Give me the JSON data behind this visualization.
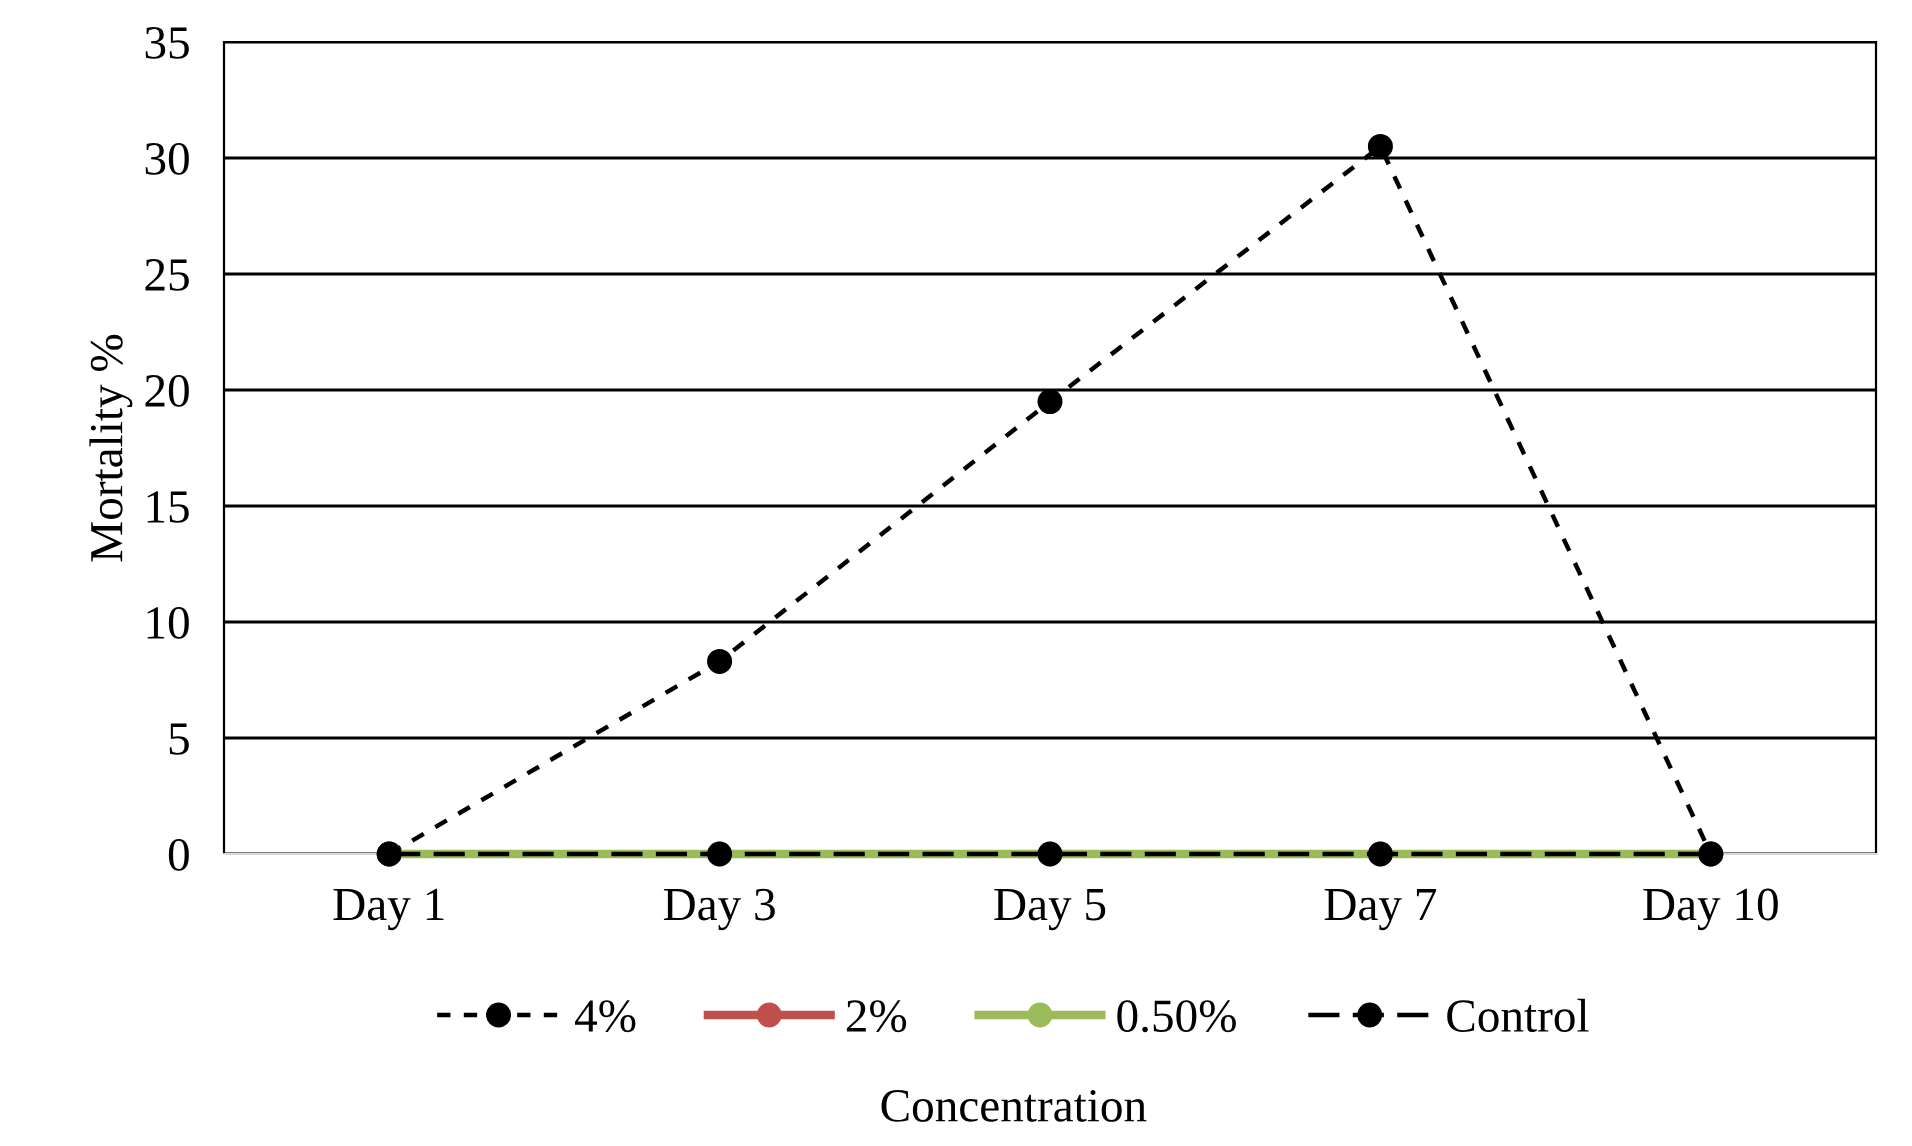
{
  "chart_data": {
    "type": "line",
    "ylabel": "Mortality %",
    "legend_title": "Concentration",
    "categories": [
      "Day 1",
      "Day 3",
      "Day 5",
      "Day 7",
      "Day 10"
    ],
    "series": [
      {
        "name": "4%",
        "color": "#000000",
        "line_style": "dashed",
        "values": [
          0,
          8.3,
          19.5,
          30.5,
          0
        ]
      },
      {
        "name": "2%",
        "color": "#c0504d",
        "line_style": "solid",
        "values": [
          null,
          null,
          null,
          null,
          null
        ]
      },
      {
        "name": "0.50%",
        "color": "#9bbb59",
        "line_style": "solid",
        "values": [
          0,
          0,
          0,
          0,
          0
        ]
      },
      {
        "name": "Control",
        "color": "#000000",
        "line_style": "longdash",
        "values": [
          0,
          0,
          0,
          0,
          0
        ]
      }
    ],
    "ylim": [
      0,
      35
    ],
    "yticks": [
      0,
      5,
      10,
      15,
      20,
      25,
      30,
      35
    ],
    "grid": "y",
    "legend": "bottom",
    "marker": "circle"
  }
}
